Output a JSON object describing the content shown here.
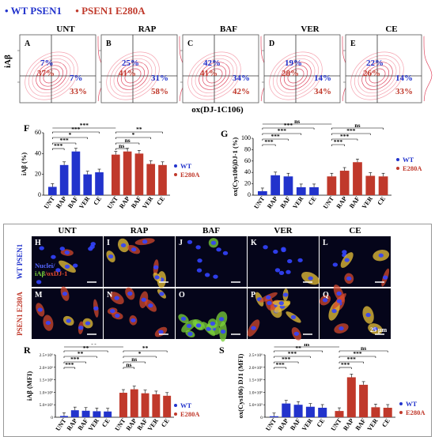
{
  "legend": {
    "wt": "WT PSEN1",
    "e280a": "PSEN1 E280A",
    "wt_color": "#2233cc",
    "e280a_color": "#c0392b"
  },
  "flow": {
    "ylabel": "iAβ",
    "xlabel": "ox(DJ-1C106)",
    "panels": [
      {
        "letter": "A",
        "title": "UNT",
        "wt_ul": "7%",
        "e_ul": "37%",
        "wt_r": "7%",
        "e_r": "33%"
      },
      {
        "letter": "B",
        "title": "RAP",
        "wt_ul": "25%",
        "e_ul": "41%",
        "wt_r": "31%",
        "e_r": "58%"
      },
      {
        "letter": "C",
        "title": "BAF",
        "wt_ul": "42%",
        "e_ul": "41%",
        "wt_r": "34%",
        "e_r": "42%"
      },
      {
        "letter": "D",
        "title": "VER",
        "wt_ul": "19%",
        "e_ul": "28%",
        "wt_r": "14%",
        "e_r": "34%"
      },
      {
        "letter": "E",
        "title": "CE",
        "wt_ul": "22%",
        "e_ul": "26%",
        "wt_r": "14%",
        "e_r": "33%"
      }
    ]
  },
  "micro": {
    "columns": [
      "UNT",
      "RAP",
      "BAF",
      "VER",
      "CE"
    ],
    "row_letters_top": [
      "H",
      "I",
      "J",
      "K",
      "L"
    ],
    "row_letters_bottom": [
      "M",
      "N",
      "O",
      "P",
      "Q"
    ],
    "row_label_top": "WT PSEN1",
    "row_label_bottom": "PSEN1 E280A",
    "stain_nuclei": "Nuclei/",
    "stain_iab": "iAβ",
    "stain_ox": "/oxDJ-1",
    "scale": "25 μm"
  },
  "chart_data": [
    {
      "panel": "F",
      "type": "bar",
      "categories": [
        "UNT",
        "RAP",
        "BAF",
        "VER",
        "CE"
      ],
      "ylabel": "iAβ (%)",
      "ylim": [
        0,
        60
      ],
      "yticks": [
        "0",
        "20",
        "40",
        "60"
      ],
      "series": [
        {
          "name": "WT",
          "color": "#2233cc",
          "values": [
            8,
            29,
            42,
            20,
            22
          ]
        },
        {
          "name": "E280A",
          "color": "#c0392b",
          "values": [
            39,
            42,
            40,
            30,
            29
          ]
        }
      ],
      "legend": [
        "WT",
        "E280A"
      ],
      "sig_wt": [
        "***",
        "***",
        "*",
        "***"
      ],
      "sig_e": [
        "ns",
        "ns",
        "*",
        "**"
      ],
      "sig_top": "***"
    },
    {
      "panel": "G",
      "type": "bar",
      "categories": [
        "UNT",
        "RAP",
        "BAF",
        "VER",
        "CE"
      ],
      "ylabel": "ox(Cys106)DJ-1 (%)",
      "ylim": [
        0,
        100
      ],
      "yticks": [
        "0",
        "20",
        "40",
        "60",
        "80",
        "100"
      ],
      "series": [
        {
          "name": "WT",
          "color": "#2233cc",
          "values": [
            7,
            35,
            33,
            14,
            14
          ]
        },
        {
          "name": "E280A",
          "color": "#c0392b",
          "values": [
            33,
            43,
            58,
            34,
            33
          ]
        }
      ],
      "legend": [
        "WT",
        "E280A"
      ],
      "sig_wt": [
        "***",
        "***",
        "***",
        "***"
      ],
      "sig_e": [
        "***",
        "***",
        "***",
        "ns"
      ],
      "sig_top": "ns"
    },
    {
      "panel": "R",
      "type": "bar",
      "categories": [
        "UNT",
        "RAP",
        "BAF",
        "VER",
        "CE"
      ],
      "ylabel": "iAβ (MFI)",
      "ylim": [
        0,
        2.5
      ],
      "yticks": [
        "0",
        "5.0×10⁵",
        "1.0×10⁶",
        "1.5×10⁶",
        "2.0×10⁶",
        "2.5×10⁶"
      ],
      "series": [
        {
          "name": "WT",
          "color": "#2233cc",
          "values": [
            0.05,
            0.28,
            0.26,
            0.24,
            0.23
          ]
        },
        {
          "name": "E280A",
          "color": "#c0392b",
          "values": [
            0.98,
            1.12,
            0.96,
            0.92,
            0.86
          ]
        }
      ],
      "legend": [
        "WT",
        "E280A"
      ],
      "sig_wt": [
        "***",
        "***",
        "**",
        "**"
      ],
      "sig_e": [
        "ns",
        "ns",
        "*",
        "**"
      ],
      "sig_top": "**"
    },
    {
      "panel": "S",
      "type": "bar",
      "categories": [
        "UNT",
        "RAP",
        "BAF",
        "VER",
        "CE"
      ],
      "ylabel": "ox(Cys106) DJ1 (MFI)",
      "ylim": [
        0,
        2.5
      ],
      "yticks": [
        "0",
        "5.0×10⁵",
        "1.0×10⁶",
        "1.5×10⁶",
        "2.0×10⁶",
        "2.5×10⁶"
      ],
      "series": [
        {
          "name": "WT",
          "color": "#2233cc",
          "values": [
            0.04,
            0.55,
            0.5,
            0.42,
            0.38
          ]
        },
        {
          "name": "E280A",
          "color": "#c0392b",
          "values": [
            0.25,
            1.6,
            1.3,
            0.4,
            0.38
          ]
        }
      ],
      "legend": [
        "WT",
        "E280A"
      ],
      "sig_wt": [
        "***",
        "***",
        "***",
        "**"
      ],
      "sig_e": [
        "***",
        "***",
        "***",
        "ns"
      ],
      "sig_top": "ns"
    }
  ]
}
